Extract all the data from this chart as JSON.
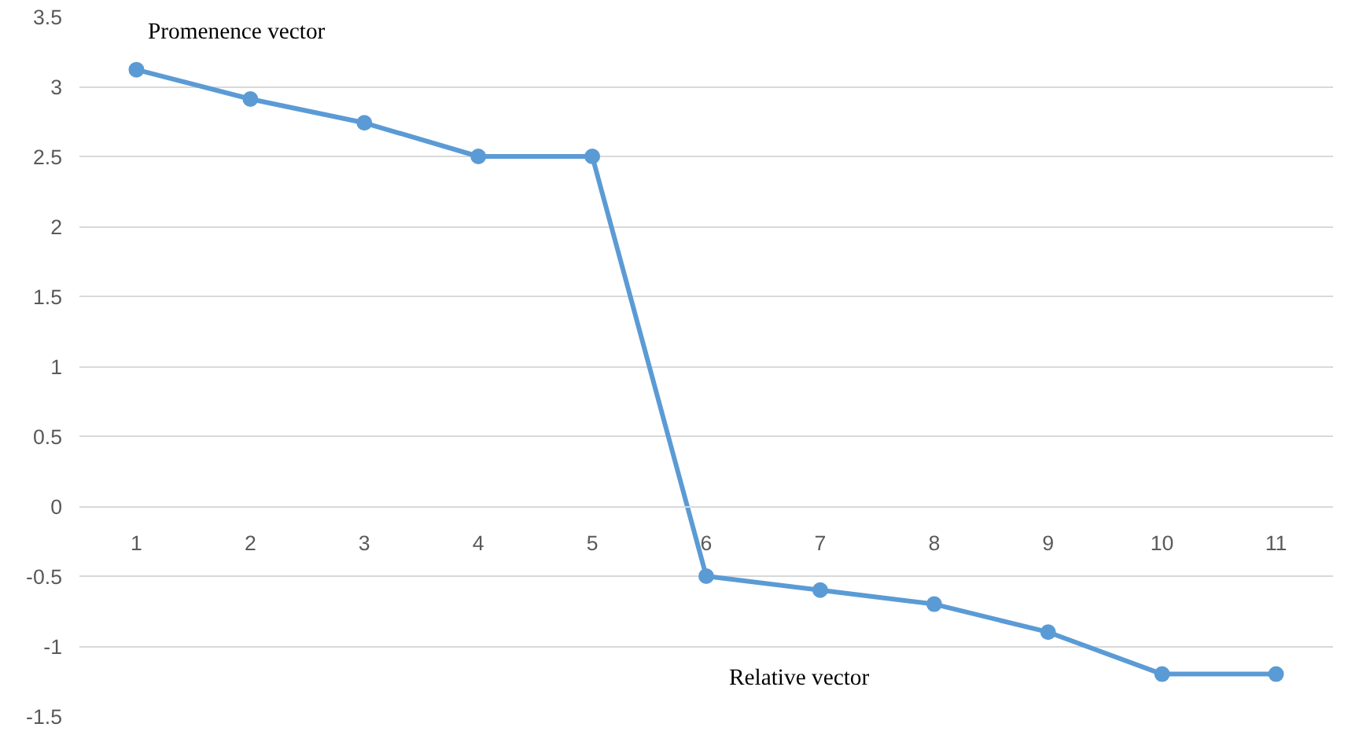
{
  "chart_data": {
    "type": "line",
    "categories": [
      "1",
      "2",
      "3",
      "4",
      "5",
      "6",
      "7",
      "8",
      "9",
      "10",
      "11"
    ],
    "series": [
      {
        "color": "#5b9bd5",
        "values": [
          3.12,
          2.91,
          2.74,
          2.5,
          2.5,
          -0.5,
          -0.6,
          -0.7,
          -0.9,
          -1.2,
          -1.2
        ]
      }
    ],
    "ylim": [
      -1.5,
      3.5
    ],
    "yticks": [
      -1.5,
      -1,
      -0.5,
      0,
      0.5,
      1,
      1.5,
      2,
      2.5,
      3,
      3.5
    ],
    "grid": "y",
    "marker": "circle",
    "line_style": "solid",
    "annotations": [
      "Promenence vector",
      "Relative vector"
    ]
  }
}
